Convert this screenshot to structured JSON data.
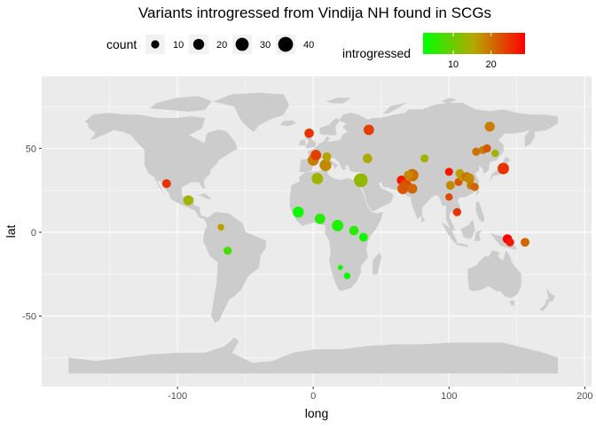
{
  "chart_data": {
    "type": "scatter",
    "title": "Variants introgressed from Vindija NH found in SCGs",
    "xlabel": "long",
    "ylabel": "lat",
    "xlim": [
      -200,
      205
    ],
    "ylim": [
      -92,
      93
    ],
    "x_ticks": [
      -100,
      0,
      100,
      200
    ],
    "y_ticks": [
      -50,
      0,
      50
    ],
    "grid": true,
    "colors": {
      "panel": "#EBEBEB",
      "grid_major": "#FFFFFF",
      "land": "#CCCCCC",
      "color_low": "#00FF00",
      "color_mid": "#B5A800",
      "color_high": "#FF0000"
    },
    "legend": {
      "position": "top",
      "size_title": "count",
      "size_breaks": [
        10,
        20,
        30,
        40
      ],
      "color_title": "introgressed",
      "color_breaks": [
        10,
        20
      ],
      "color_range": [
        2,
        29
      ]
    },
    "series": [
      {
        "points": [
          {
            "long": -108,
            "lat": 29,
            "count": 12,
            "introgressed": 25
          },
          {
            "long": -92,
            "lat": 19,
            "count": 16,
            "introgressed": 14
          },
          {
            "long": -68,
            "lat": 3,
            "count": 6,
            "introgressed": 16
          },
          {
            "long": -63,
            "lat": -11,
            "count": 10,
            "introgressed": 7
          },
          {
            "long": -3,
            "lat": 59,
            "count": 14,
            "introgressed": 25
          },
          {
            "long": 0,
            "lat": 43,
            "count": 21,
            "introgressed": 19
          },
          {
            "long": 2,
            "lat": 46,
            "count": 18,
            "introgressed": 24
          },
          {
            "long": 9,
            "lat": 40,
            "count": 24,
            "introgressed": 18
          },
          {
            "long": 10,
            "lat": 45,
            "count": 12,
            "introgressed": 16
          },
          {
            "long": 3,
            "lat": 32,
            "count": 22,
            "introgressed": 14
          },
          {
            "long": 35,
            "lat": 31,
            "count": 34,
            "introgressed": 13
          },
          {
            "long": 40,
            "lat": 44,
            "count": 14,
            "introgressed": 15
          },
          {
            "long": 41,
            "lat": 61,
            "count": 18,
            "introgressed": 24
          },
          {
            "long": 82,
            "lat": 44,
            "count": 10,
            "introgressed": 14
          },
          {
            "long": 65,
            "lat": 31,
            "count": 14,
            "introgressed": 27
          },
          {
            "long": 68,
            "lat": 28,
            "count": 24,
            "introgressed": 23
          },
          {
            "long": 73,
            "lat": 34,
            "count": 26,
            "introgressed": 20
          },
          {
            "long": 70,
            "lat": 34,
            "count": 12,
            "introgressed": 18
          },
          {
            "long": 66,
            "lat": 26,
            "count": 20,
            "introgressed": 22
          },
          {
            "long": 73,
            "lat": 26,
            "count": 16,
            "introgressed": 21
          },
          {
            "long": -11,
            "lat": 12,
            "count": 20,
            "introgressed": 3
          },
          {
            "long": 5,
            "lat": 8,
            "count": 18,
            "introgressed": 5
          },
          {
            "long": 18,
            "lat": 4,
            "count": 22,
            "introgressed": 4
          },
          {
            "long": 30,
            "lat": 1,
            "count": 14,
            "introgressed": 5
          },
          {
            "long": 37,
            "lat": -3,
            "count": 12,
            "introgressed": 3
          },
          {
            "long": 20,
            "lat": -21,
            "count": 3,
            "introgressed": 3
          },
          {
            "long": 25,
            "lat": -26,
            "count": 6,
            "introgressed": 3
          },
          {
            "long": 100,
            "lat": 36,
            "count": 10,
            "introgressed": 27
          },
          {
            "long": 100,
            "lat": 21,
            "count": 8,
            "introgressed": 23
          },
          {
            "long": 101,
            "lat": 28,
            "count": 12,
            "introgressed": 18
          },
          {
            "long": 106,
            "lat": 12,
            "count": 10,
            "introgressed": 25
          },
          {
            "long": 107,
            "lat": 30,
            "count": 10,
            "introgressed": 22
          },
          {
            "long": 108,
            "lat": 35,
            "count": 12,
            "introgressed": 16
          },
          {
            "long": 110,
            "lat": 33,
            "count": 12,
            "introgressed": 17
          },
          {
            "long": 113,
            "lat": 33,
            "count": 14,
            "introgressed": 20
          },
          {
            "long": 115,
            "lat": 32,
            "count": 16,
            "introgressed": 18
          },
          {
            "long": 116,
            "lat": 28,
            "count": 10,
            "introgressed": 19
          },
          {
            "long": 119,
            "lat": 27,
            "count": 10,
            "introgressed": 21
          },
          {
            "long": 120,
            "lat": 48,
            "count": 10,
            "introgressed": 20
          },
          {
            "long": 125,
            "lat": 49,
            "count": 10,
            "introgressed": 19
          },
          {
            "long": 128,
            "lat": 50,
            "count": 10,
            "introgressed": 22
          },
          {
            "long": 130,
            "lat": 63,
            "count": 16,
            "introgressed": 19
          },
          {
            "long": 134,
            "lat": 47,
            "count": 8,
            "introgressed": 14
          },
          {
            "long": 140,
            "lat": 38,
            "count": 22,
            "introgressed": 25
          },
          {
            "long": 143,
            "lat": -4,
            "count": 14,
            "introgressed": 29
          },
          {
            "long": 145,
            "lat": -6,
            "count": 10,
            "introgressed": 27
          },
          {
            "long": 156,
            "lat": -6,
            "count": 12,
            "introgressed": 21
          }
        ]
      }
    ]
  }
}
